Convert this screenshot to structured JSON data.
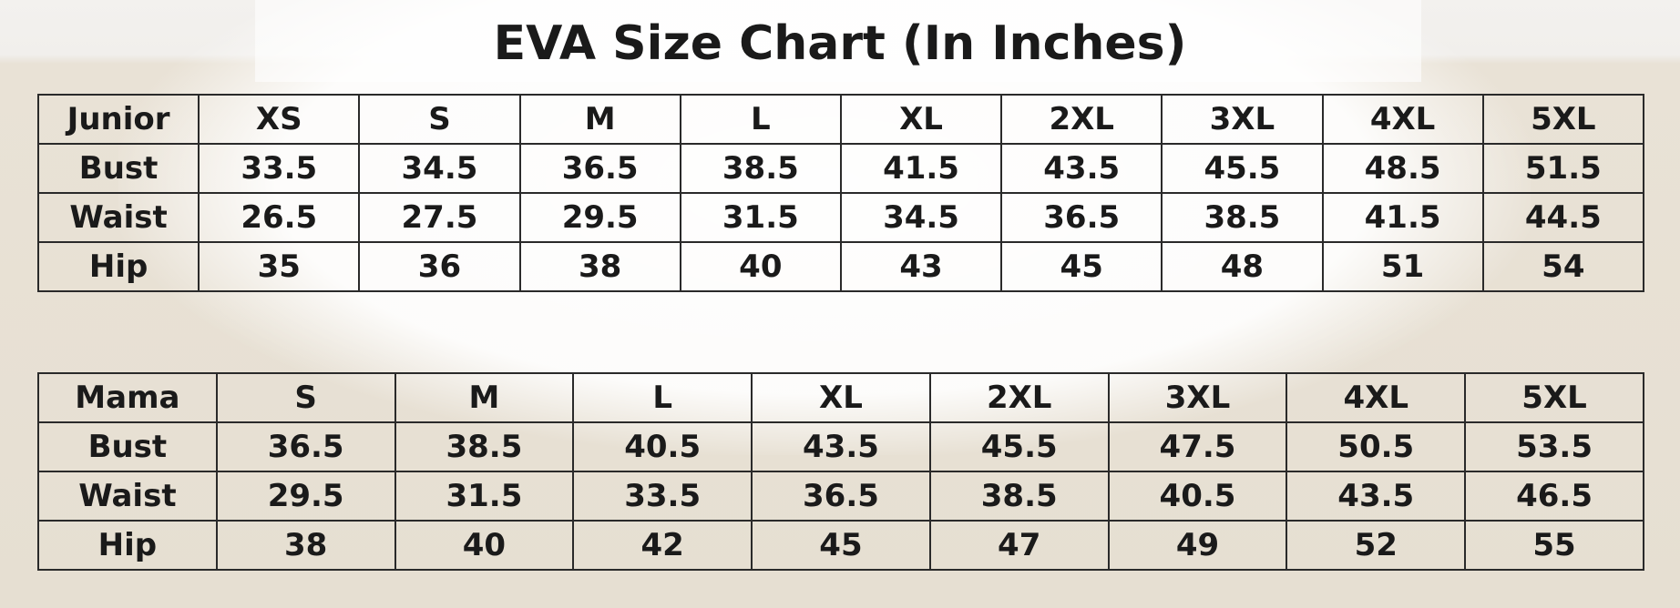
{
  "title": "EVA Size Chart (In Inches)",
  "tables": [
    {
      "header": [
        "Junior",
        "XS",
        "S",
        "M",
        "L",
        "XL",
        "2XL",
        "3XL",
        "4XL",
        "5XL"
      ],
      "rows": [
        [
          "Bust",
          "33.5",
          "34.5",
          "36.5",
          "38.5",
          "41.5",
          "43.5",
          "45.5",
          "48.5",
          "51.5"
        ],
        [
          "Waist",
          "26.5",
          "27.5",
          "29.5",
          "31.5",
          "34.5",
          "36.5",
          "38.5",
          "41.5",
          "44.5"
        ],
        [
          "Hip",
          "35",
          "36",
          "38",
          "40",
          "43",
          "45",
          "48",
          "51",
          "54"
        ]
      ]
    },
    {
      "header": [
        "Mama",
        "S",
        "M",
        "L",
        "XL",
        "2XL",
        "3XL",
        "4XL",
        "5XL"
      ],
      "rows": [
        [
          "Bust",
          "36.5",
          "38.5",
          "40.5",
          "43.5",
          "45.5",
          "47.5",
          "50.5",
          "53.5"
        ],
        [
          "Waist",
          "29.5",
          "31.5",
          "33.5",
          "36.5",
          "38.5",
          "40.5",
          "43.5",
          "46.5"
        ],
        [
          "Hip",
          "38",
          "40",
          "42",
          "45",
          "47",
          "49",
          "52",
          "55"
        ]
      ]
    }
  ]
}
